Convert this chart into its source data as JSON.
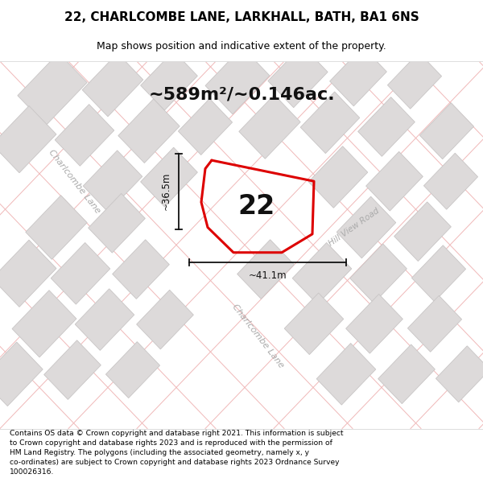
{
  "title_line1": "22, CHARLCOMBE LANE, LARKHALL, BATH, BA1 6NS",
  "title_line2": "Map shows position and indicative extent of the property.",
  "area_label": "~589m²/~0.146ac.",
  "plot_number": "22",
  "dim_width": "~41.1m",
  "dim_height": "~36.5m",
  "road_label_upper": "Charlcombe Lane",
  "road_label_lower": "Charlcombe Lane",
  "road_label_hill": "Hill View Road",
  "footer_text": "Contains OS data © Crown copyright and database right 2021. This information is subject to Crown copyright and database rights 2023 and is reproduced with the permission of HM Land Registry. The polygons (including the associated geometry, namely x, y co-ordinates) are subject to Crown copyright and database rights 2023 Ordnance Survey 100026316.",
  "map_bg": "#f7f5f5",
  "road_line_color": "#f0b8b8",
  "building_color": "#dddada",
  "building_edge": "#c8c5c5",
  "plot_outline_color": "#dd0000",
  "white": "#ffffff",
  "title_bg": "#ffffff",
  "footer_bg": "#ffffff",
  "dim_color": "#111111",
  "road_label_color": "#aaaaaa",
  "number_color": "#111111"
}
